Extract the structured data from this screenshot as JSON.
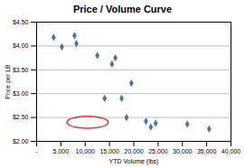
{
  "chart_data": {
    "type": "scatter",
    "title": "Price / Volume Curve",
    "xlabel": "YTD Volume (lbs)",
    "ylabel": "Price per LB",
    "x": [
      3500,
      5200,
      7800,
      8200,
      12500,
      14000,
      15500,
      16200,
      17500,
      18500,
      19500,
      22500,
      23500,
      24500,
      31000,
      35500
    ],
    "values": [
      4.18,
      3.98,
      4.22,
      4.05,
      3.8,
      2.9,
      3.62,
      3.75,
      2.9,
      2.5,
      3.22,
      2.42,
      2.3,
      2.38,
      2.36,
      2.26
    ],
    "color": "#4472C4",
    "marker": "diamond",
    "xlim": [
      0,
      40000
    ],
    "xticks": [
      {
        "value": 0,
        "label": "-"
      },
      {
        "value": 5000,
        "label": "5,000"
      },
      {
        "value": 10000,
        "label": "10,000"
      },
      {
        "value": 15000,
        "label": "15,000"
      },
      {
        "value": 20000,
        "label": "20,000"
      },
      {
        "value": 25000,
        "label": "25,000"
      },
      {
        "value": 30000,
        "label": "30,000"
      },
      {
        "value": 35000,
        "label": "35,000"
      },
      {
        "value": 40000,
        "label": "40,000"
      }
    ],
    "ylim": [
      2.0,
      4.5
    ],
    "yticks": [
      {
        "value": 2.0,
        "label": "$2.00"
      },
      {
        "value": 2.5,
        "label": "$2.50"
      },
      {
        "value": 3.0,
        "label": "$3.00"
      },
      {
        "value": 3.5,
        "label": "$3.50"
      },
      {
        "value": 4.0,
        "label": "$4.00"
      },
      {
        "value": 4.5,
        "label": "$4.50"
      }
    ],
    "grid": "y",
    "ellipse": {
      "cx": 10500,
      "cy": 2.4,
      "width": 8500,
      "height": 0.25,
      "color": "#FF0000"
    }
  }
}
